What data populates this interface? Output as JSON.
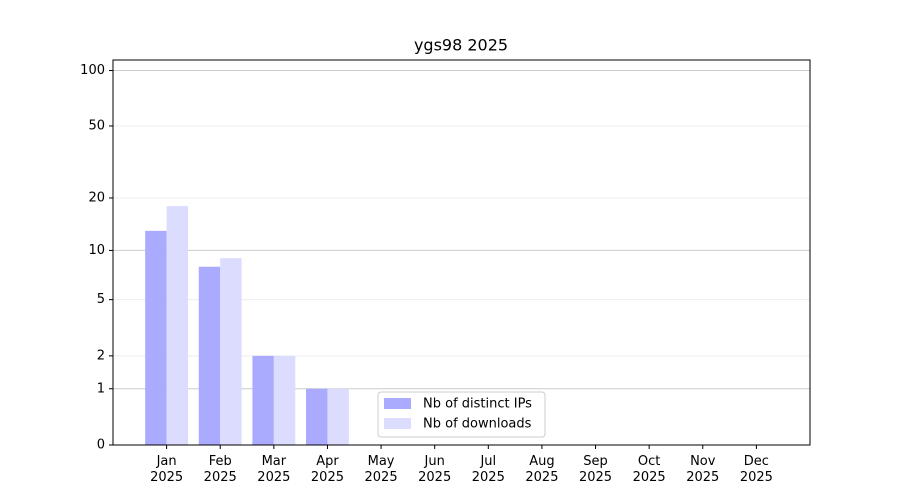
{
  "chart_data": {
    "type": "bar",
    "title": "ygs98 2025",
    "categories": [
      "Jan\n2025",
      "Feb\n2025",
      "Mar\n2025",
      "Apr\n2025",
      "May\n2025",
      "Jun\n2025",
      "Jul\n2025",
      "Aug\n2025",
      "Sep\n2025",
      "Oct\n2025",
      "Nov\n2025",
      "Dec\n2025"
    ],
    "series": [
      {
        "name": "Nb of distinct IPs",
        "color": "#aaaaff",
        "values": [
          13,
          8,
          2,
          1,
          0,
          0,
          0,
          0,
          0,
          0,
          0,
          0
        ]
      },
      {
        "name": "Nb of downloads",
        "color": "#dcdcff",
        "values": [
          18,
          9,
          2,
          1,
          0,
          0,
          0,
          0,
          0,
          0,
          0,
          0
        ]
      }
    ],
    "yscale": "log1p",
    "ylim": [
      0,
      114
    ],
    "yticks": [
      0,
      1,
      2,
      5,
      10,
      20,
      50,
      100
    ],
    "grid": true,
    "legend": "lower center"
  }
}
